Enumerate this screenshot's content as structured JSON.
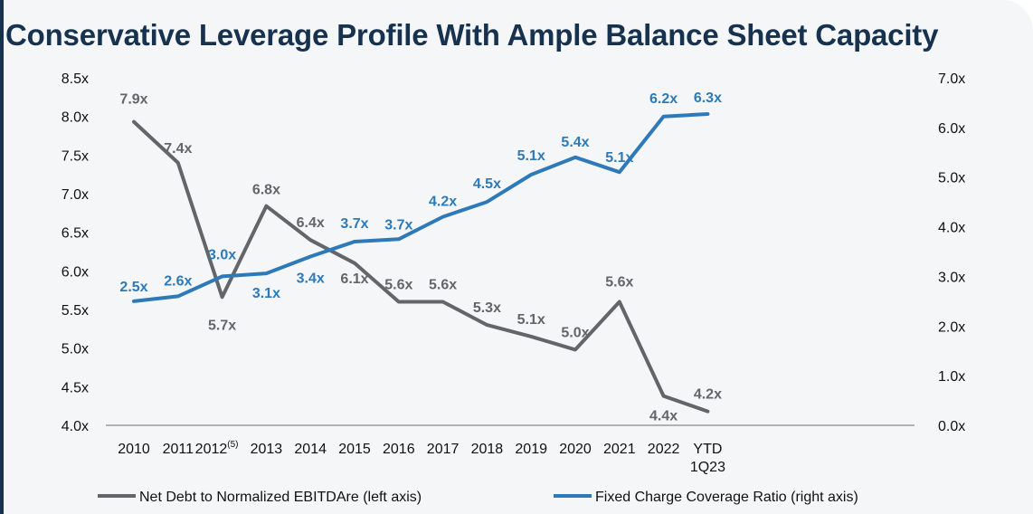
{
  "title": "Conservative Leverage Profile With Ample Balance Sheet Capacity",
  "colors": {
    "title": "#17324f",
    "series_left": "#626668",
    "series_right": "#2e7ab8",
    "axis": "#888888"
  },
  "chart_data": {
    "type": "line",
    "categories": [
      "2010",
      "2011",
      "2012",
      "2013",
      "2014",
      "2015",
      "2016",
      "2017",
      "2018",
      "2019",
      "2020",
      "2021",
      "2022",
      "YTD 1Q23"
    ],
    "category_footnotes": {
      "2012": "(5)"
    },
    "y_left": {
      "min": 4.0,
      "max": 8.5,
      "ticks": [
        "4.0x",
        "4.5x",
        "5.0x",
        "5.5x",
        "6.0x",
        "6.5x",
        "7.0x",
        "7.5x",
        "8.0x",
        "8.5x"
      ]
    },
    "y_right": {
      "min": 0.0,
      "max": 7.0,
      "ticks": [
        "0.0x",
        "1.0x",
        "2.0x",
        "3.0x",
        "4.0x",
        "5.0x",
        "6.0x",
        "7.0x"
      ]
    },
    "series": [
      {
        "name": "Net Debt to Normalized EBITDAre (left axis)",
        "axis": "left",
        "color": "#626668",
        "values": [
          7.93,
          7.4,
          5.66,
          6.84,
          6.4,
          6.1,
          5.6,
          5.6,
          5.3,
          5.15,
          4.98,
          5.6,
          4.38,
          4.18
        ],
        "labels": [
          "7.9x",
          "7.4x",
          "5.7x",
          "6.8x",
          "6.4x",
          "6.1x",
          "5.6x",
          "5.6x",
          "5.3x",
          "5.1x",
          "5.0x",
          "5.6x",
          "4.4x",
          "4.2x"
        ]
      },
      {
        "name": "Fixed Charge Coverage Ratio (right axis)",
        "axis": "right",
        "color": "#2e7ab8",
        "values": [
          2.5,
          2.6,
          3.0,
          3.06,
          3.4,
          3.7,
          3.75,
          4.2,
          4.5,
          5.05,
          5.4,
          5.1,
          6.22,
          6.27
        ],
        "labels": [
          "2.5x",
          "2.6x",
          "3.0x",
          "3.1x",
          "3.4x",
          "3.7x",
          "3.7x",
          "4.2x",
          "4.5x",
          "5.1x",
          "5.4x",
          "5.1x",
          "6.2x",
          "6.3x"
        ]
      }
    ],
    "legend": "bottom"
  }
}
